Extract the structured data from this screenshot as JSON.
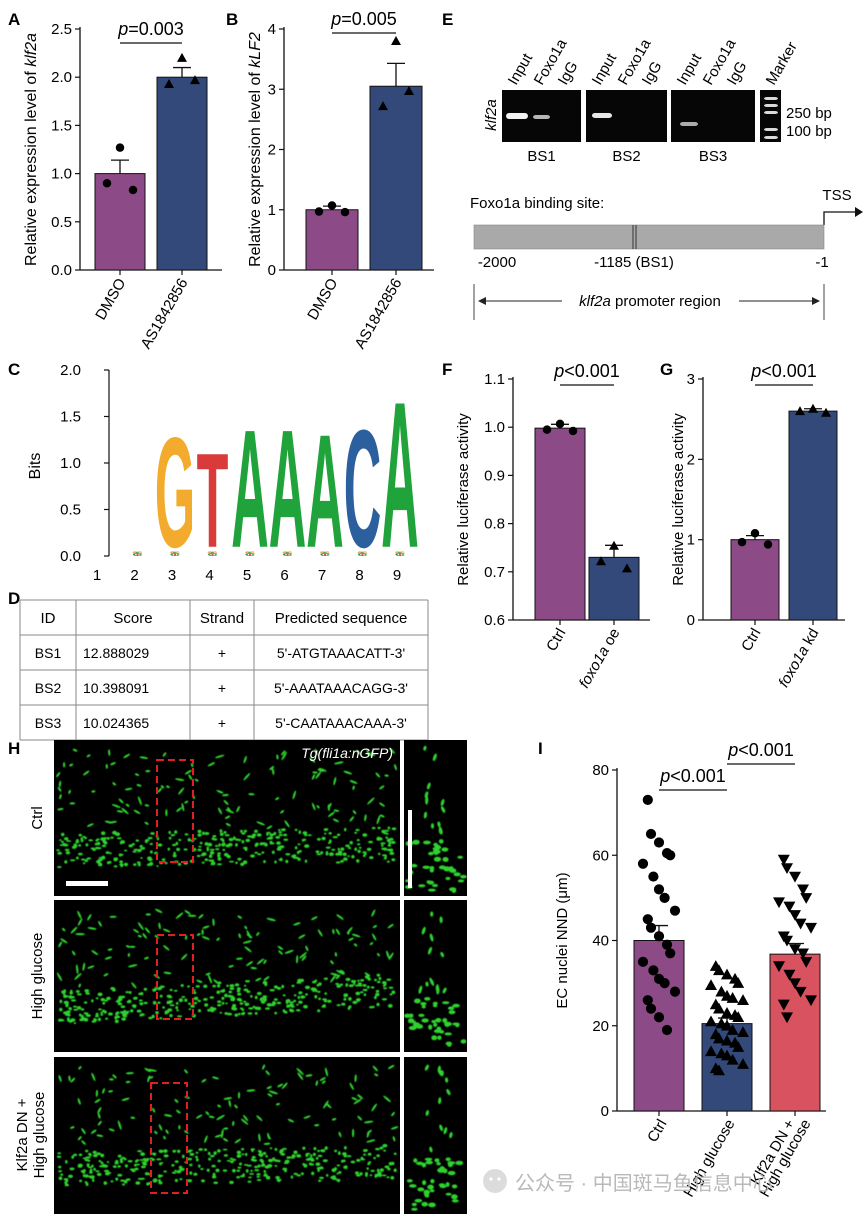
{
  "colors": {
    "purple": "#8c4a86",
    "navy": "#33497a",
    "red": "#d85260",
    "gel_band": "#f2f2f2",
    "promoter_bar": "#a9a9a9",
    "gfp": "#2fd12f",
    "dashed_box": "#e02020"
  },
  "panels": [
    "A",
    "B",
    "C",
    "D",
    "E",
    "F",
    "G",
    "H",
    "I"
  ],
  "chart_data": [
    {
      "panel": "A",
      "type": "bar",
      "ylabel": "Relative expression level of klf2a",
      "categories": [
        "DMSO",
        "AS1842856"
      ],
      "values": [
        1.0,
        2.0
      ],
      "errors": [
        0.14,
        0.1
      ],
      "points": [
        [
          1.27,
          0.9,
          0.83
        ],
        [
          2.2,
          1.93,
          1.97
        ]
      ],
      "markers": [
        "circle",
        "triangle"
      ],
      "ylim": [
        0.0,
        2.5
      ],
      "yticks": [
        "0.0",
        "0.5",
        "1.0",
        "1.5",
        "2.0",
        "2.5"
      ],
      "pvalue": "p=0.003"
    },
    {
      "panel": "B",
      "type": "bar",
      "ylabel": "Relative expression level of kLF2",
      "categories": [
        "DMSO",
        "AS1842856"
      ],
      "values": [
        1.0,
        3.05
      ],
      "errors": [
        0.06,
        0.38
      ],
      "points": [
        [
          1.07,
          0.97,
          0.96
        ],
        [
          3.8,
          2.72,
          2.97
        ]
      ],
      "markers": [
        "circle",
        "triangle"
      ],
      "ylim": [
        0,
        4
      ],
      "yticks": [
        "0",
        "1",
        "2",
        "3",
        "4"
      ],
      "pvalue": "p=0.005"
    },
    {
      "panel": "F",
      "type": "bar",
      "ylabel": "Relative luciferase activity",
      "categories": [
        "Ctrl",
        "foxo1a oe"
      ],
      "values": [
        0.998,
        0.73
      ],
      "errors": [
        0.008,
        0.025
      ],
      "points": [
        [
          1.007,
          0.995,
          0.992
        ],
        [
          0.754,
          0.722,
          0.707
        ]
      ],
      "markers": [
        "circle",
        "triangle"
      ],
      "ylim": [
        0.6,
        1.1
      ],
      "yticks": [
        "0.6",
        "0.7",
        "0.8",
        "0.9",
        "1.0",
        "1.1"
      ],
      "pvalue": "p<0.001"
    },
    {
      "panel": "G",
      "type": "bar",
      "ylabel": "Relative luciferase activity",
      "categories": [
        "Ctrl",
        "foxo1a kd"
      ],
      "values": [
        1.0,
        2.6
      ],
      "errors": [
        0.05,
        0.03
      ],
      "points": [
        [
          1.08,
          0.97,
          0.94
        ],
        [
          2.63,
          2.6,
          2.58
        ]
      ],
      "markers": [
        "circle",
        "triangle"
      ],
      "ylim": [
        0,
        3
      ],
      "yticks": [
        "0",
        "1",
        "2",
        "3"
      ],
      "pvalue": "p<0.001"
    },
    {
      "panel": "I",
      "type": "bar",
      "ylabel": "EC nuclei NND (μm)",
      "categories": [
        "Ctrl",
        "High glucose",
        "Klf2a DN + High glucose"
      ],
      "values": [
        40.0,
        20.5,
        36.8
      ],
      "errors": [
        3.5,
        1.3,
        2.5
      ],
      "points": [
        [
          73,
          65,
          63,
          60.5,
          60,
          58,
          55,
          52,
          50,
          47,
          45,
          43,
          41,
          39,
          37,
          35,
          33,
          31,
          30,
          28,
          26,
          24,
          22,
          19
        ],
        [
          34,
          33,
          32,
          31,
          30,
          29.5,
          28,
          27,
          26.5,
          26,
          25,
          24,
          23,
          22.5,
          22,
          21,
          20.5,
          20,
          19,
          18.5,
          18,
          17,
          16.5,
          16,
          15,
          14,
          13.5,
          13,
          12,
          11,
          10,
          9.5
        ],
        [
          59,
          57,
          55,
          52,
          50,
          49,
          48,
          46,
          44,
          43,
          41,
          40,
          38,
          37,
          35,
          34,
          32,
          30,
          28,
          26,
          25,
          22
        ]
      ],
      "markers": [
        "circle",
        "triangle",
        "triangle-down"
      ],
      "ylim": [
        0,
        80
      ],
      "yticks": [
        "0",
        "20",
        "40",
        "60",
        "80"
      ],
      "pvalues": [
        "p<0.001",
        "p<0.001"
      ]
    },
    {
      "panel": "C",
      "type": "sequence-logo",
      "ylabel": "Bits",
      "yticks": [
        "0.0",
        "0.5",
        "1.0",
        "1.5",
        "2.0"
      ],
      "positions": [
        "1",
        "2",
        "3",
        "4",
        "5",
        "6",
        "7",
        "8",
        "9"
      ],
      "main_letters": [
        "",
        "",
        "G",
        "T",
        "A",
        "A",
        "A",
        "C",
        "A"
      ],
      "heights_bits": [
        0,
        0,
        1.17,
        1.0,
        1.25,
        1.25,
        1.2,
        1.25,
        1.55
      ]
    }
  ],
  "gel": {
    "row_label": "klf2a",
    "lanes": [
      "Input",
      "Foxo1a",
      "IgG"
    ],
    "marker_label": "Marker",
    "groups": [
      "BS1",
      "BS2",
      "BS3"
    ],
    "size_labels": [
      "250 bp",
      "100 bp"
    ]
  },
  "promoter": {
    "title": "Foxo1a binding site:",
    "tss": "TSS",
    "left_label": "-2000",
    "site_label": "-1185 (BS1)",
    "right_label": "-1",
    "region_label_gene": "klf2a",
    "region_label_rest": " promoter region"
  },
  "table": {
    "headers": [
      "ID",
      "Score",
      "Strand",
      "Predicted sequence"
    ],
    "rows": [
      [
        "BS1",
        "12.888029",
        "+",
        "5'-ATGTAAACATT-3'"
      ],
      [
        "BS2",
        "10.398091",
        "+",
        "5'-AAATAAACAGG-3'"
      ],
      [
        "BS3",
        "10.024365",
        "+",
        "5'-CAATAAACAAA-3'"
      ]
    ]
  },
  "micrographs": {
    "transgene": "Tg(fli1a:nGFP)",
    "rows": [
      "Ctrl",
      "High glucose"
    ],
    "row3_line1": "Klf2a DN +",
    "row3_line2": "High glucose"
  },
  "watermark": "公众号 · 中国斑马鱼信息中心"
}
